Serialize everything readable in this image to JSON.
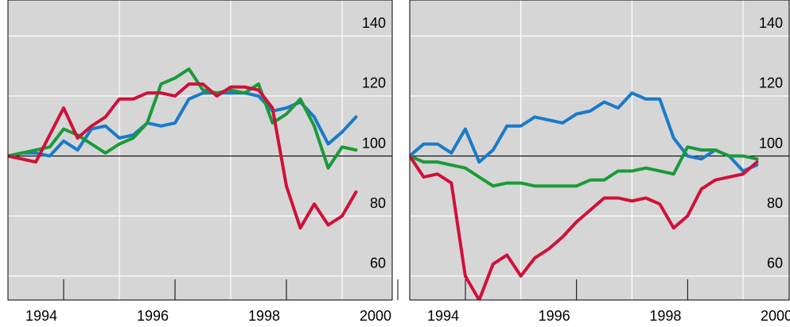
{
  "chart_data": [
    {
      "type": "line",
      "x": [
        1994,
        1994.25,
        1994.5,
        1994.75,
        1995,
        1995.25,
        1995.5,
        1995.75,
        1996,
        1996.25,
        1996.5,
        1996.75,
        1997,
        1997.25,
        1997.5,
        1997.75,
        1998,
        1998.25,
        1998.5,
        1998.75,
        1999,
        1999.25,
        1999.5,
        1999.75,
        2000,
        2000.25
      ],
      "series": [
        {
          "color": "#1a7ac8",
          "values": [
            100,
            101,
            101,
            100,
            105,
            102,
            109,
            110,
            106,
            107,
            111,
            110,
            111,
            119,
            121,
            121,
            121,
            121,
            120,
            115,
            116,
            118,
            113,
            104,
            108,
            113
          ]
        },
        {
          "color": "#1a9a3a",
          "values": [
            100,
            101,
            102,
            103,
            109,
            107,
            104,
            101,
            104,
            106,
            111,
            124,
            126,
            129,
            122,
            121,
            122,
            121,
            124,
            111,
            114,
            119,
            110,
            96,
            103,
            102
          ]
        },
        {
          "color": "#d0103a",
          "values": [
            100,
            99,
            98,
            107,
            116,
            106,
            110,
            113,
            119,
            119,
            121,
            121,
            120,
            124,
            124,
            120,
            123,
            123,
            122,
            116,
            90,
            76,
            84,
            77,
            80,
            88
          ]
        }
      ],
      "xlim": [
        1994,
        2000.9
      ],
      "ylim": [
        52,
        152
      ],
      "xticks": [
        1994,
        1996,
        1998,
        2000
      ],
      "yticks": [
        60,
        80,
        100,
        120,
        140
      ],
      "grid": true,
      "baseline": 100
    },
    {
      "type": "line",
      "x": [
        1994,
        1994.25,
        1994.5,
        1994.75,
        1995,
        1995.25,
        1995.5,
        1995.75,
        1996,
        1996.25,
        1996.5,
        1996.75,
        1997,
        1997.25,
        1997.5,
        1997.75,
        1998,
        1998.25,
        1998.5,
        1998.75,
        1999,
        1999.25,
        1999.5,
        1999.75,
        2000,
        2000.25
      ],
      "series": [
        {
          "color": "#1a7ac8",
          "values": [
            100,
            104,
            104,
            101,
            109,
            98,
            102,
            110,
            110,
            113,
            112,
            111,
            114,
            115,
            118,
            116,
            121,
            119,
            119,
            106,
            100,
            99,
            102,
            100,
            95,
            97
          ]
        },
        {
          "color": "#1a9a3a",
          "values": [
            100,
            98,
            98,
            97,
            96,
            93,
            90,
            91,
            91,
            90,
            90,
            90,
            90,
            92,
            92,
            95,
            95,
            96,
            95,
            94,
            103,
            102,
            102,
            100,
            100,
            99
          ]
        },
        {
          "color": "#d0103a",
          "values": [
            100,
            93,
            94,
            91,
            60,
            52,
            64,
            67,
            60,
            66,
            69,
            73,
            78,
            82,
            86,
            86,
            85,
            86,
            84,
            76,
            80,
            89,
            92,
            93,
            94,
            98
          ]
        }
      ],
      "xlim": [
        1994,
        2000.83
      ],
      "ylim": [
        52,
        152
      ],
      "xticks": [
        1994,
        1996,
        1998,
        2000
      ],
      "yticks": [
        60,
        80,
        100,
        120,
        140
      ],
      "grid": true,
      "baseline": 100
    }
  ]
}
